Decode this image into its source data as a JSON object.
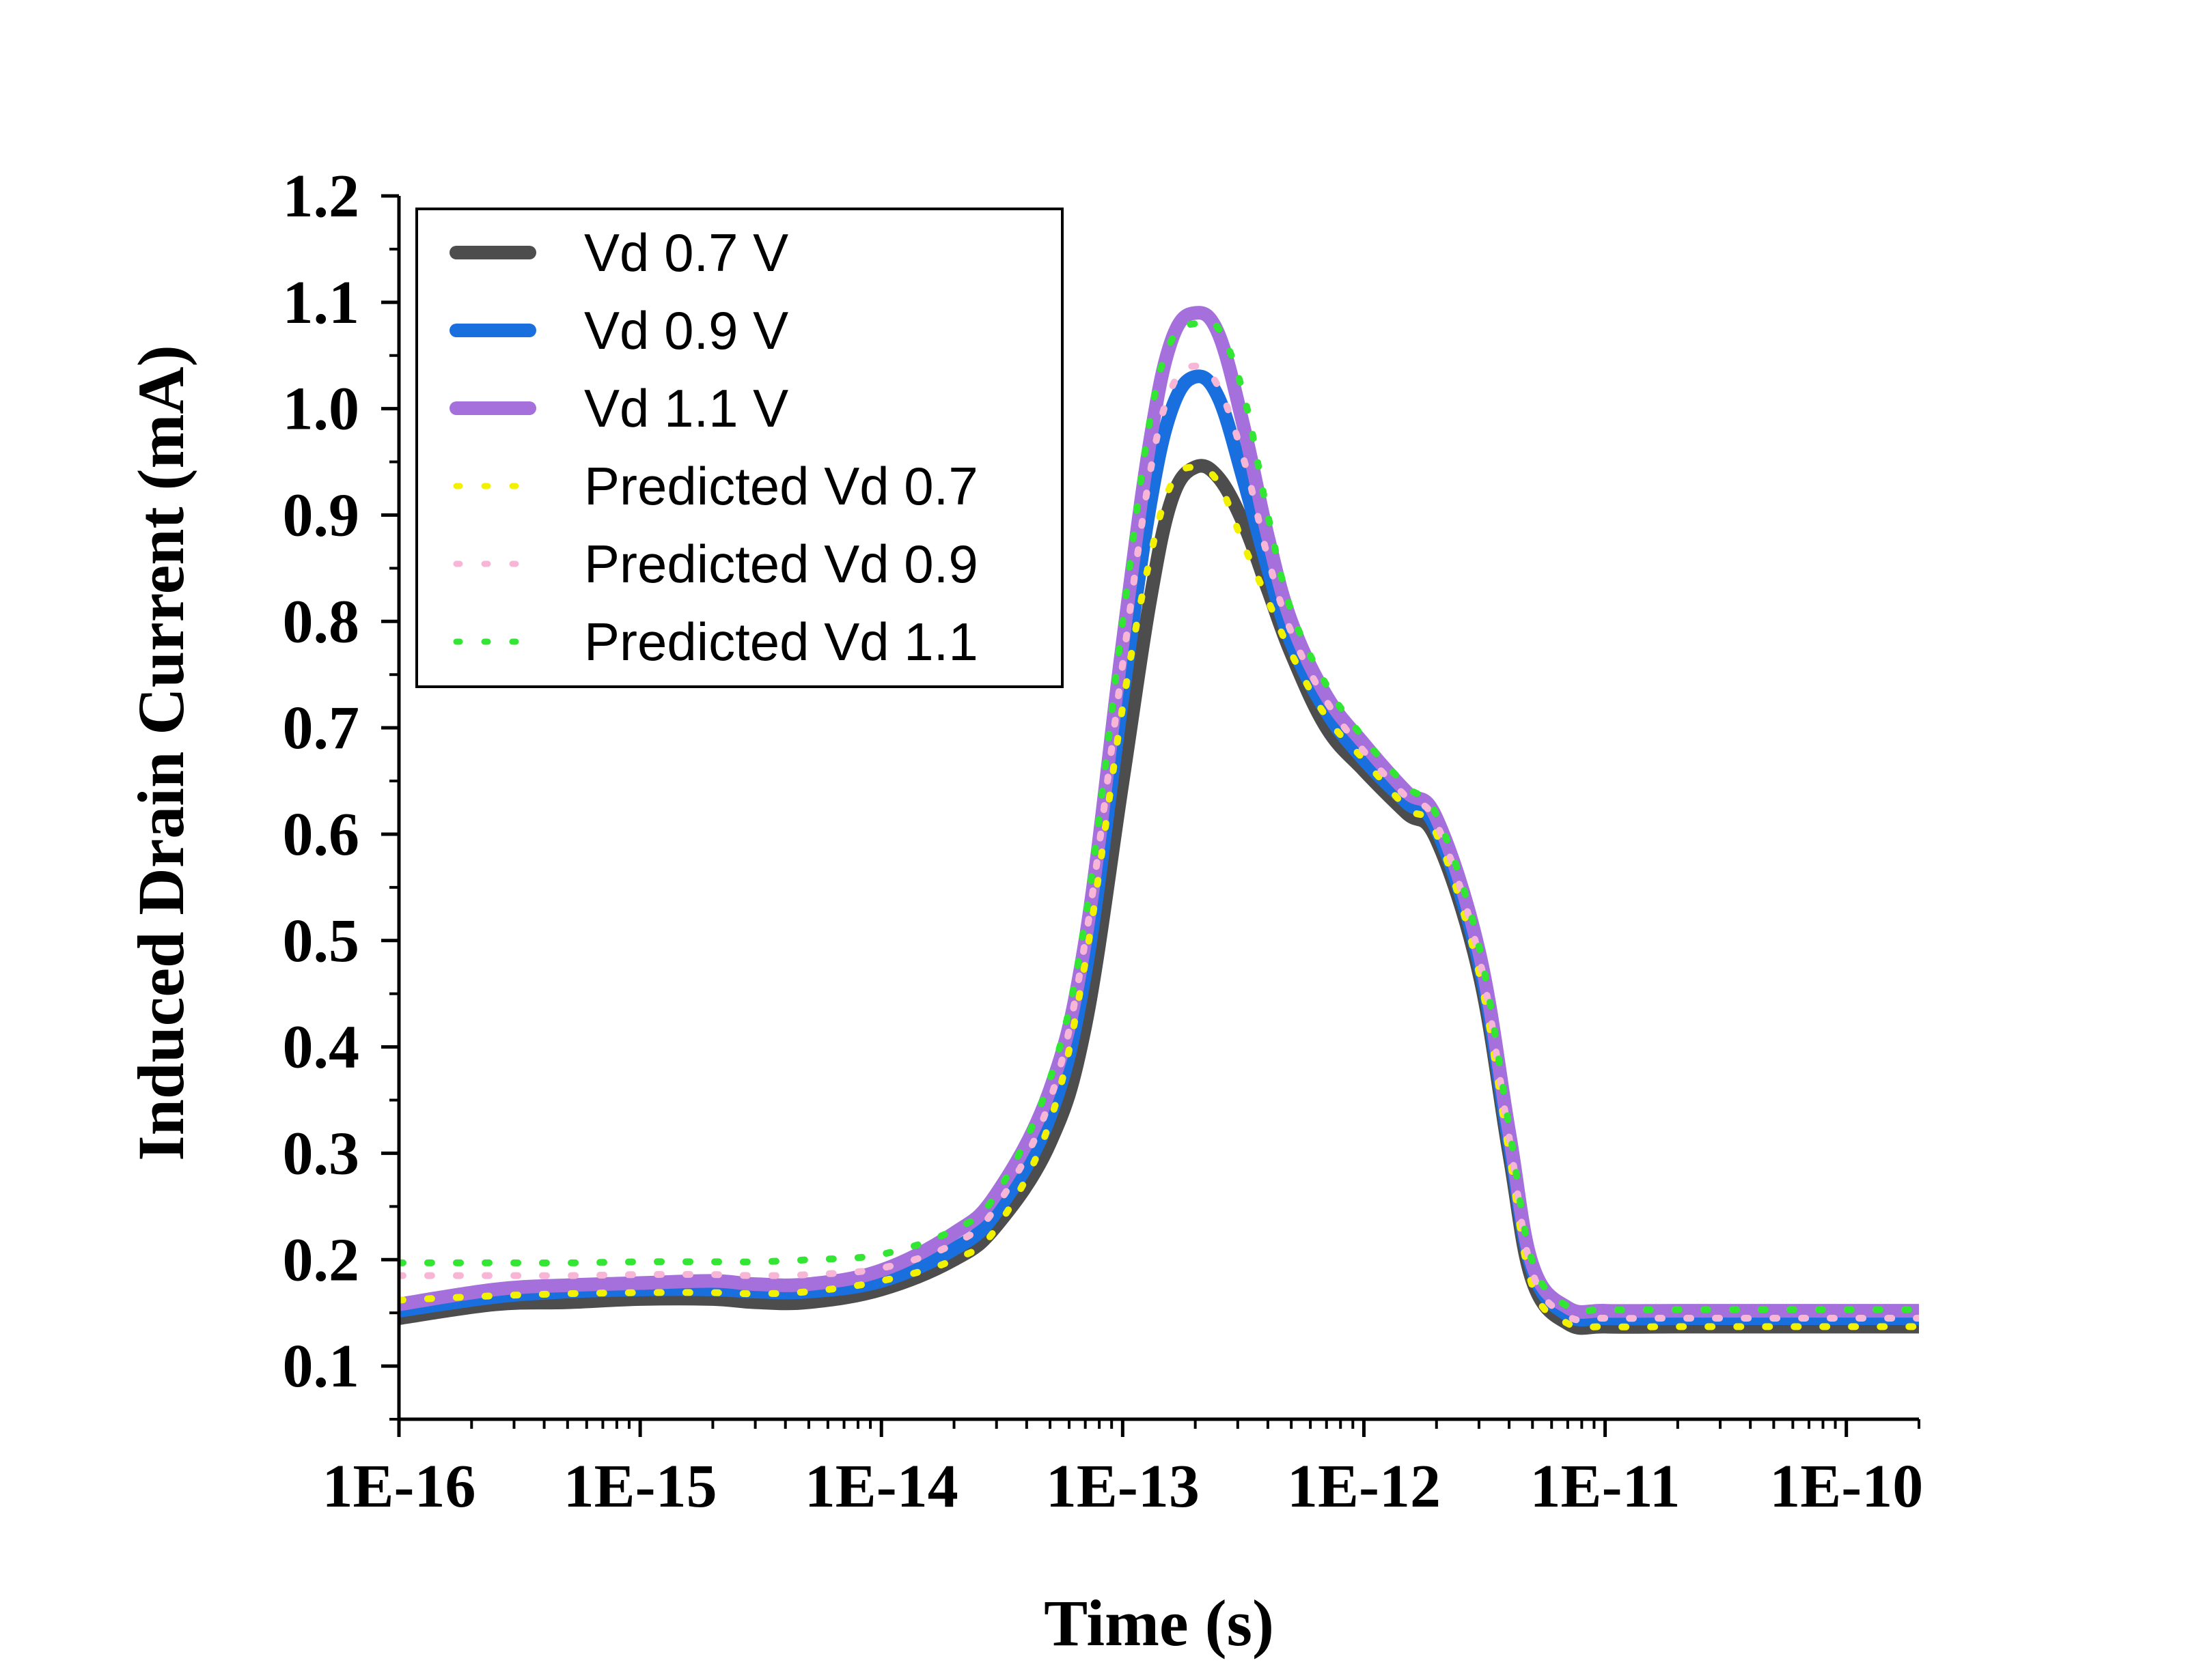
{
  "chart_data": {
    "type": "line",
    "xlabel": "Time (s)",
    "ylabel": "Induced Drain Current (mA)",
    "x_scale": "log",
    "xlim": [
      1e-16,
      2e-10
    ],
    "ylim": [
      0.05,
      1.2
    ],
    "x_ticks": [
      1e-16,
      1e-15,
      1e-14,
      1e-13,
      1e-12,
      1e-11,
      1e-10
    ],
    "x_tick_labels": [
      "1E-16",
      "1E-15",
      "1E-14",
      "1E-13",
      "1E-12",
      "1E-11",
      "1E-10"
    ],
    "y_ticks": [
      0.1,
      0.2,
      0.3,
      0.4,
      0.5,
      0.6,
      0.7,
      0.8,
      0.9,
      1.0,
      1.1,
      1.2
    ],
    "y_tick_labels": [
      "0.1",
      "0.2",
      "0.3",
      "0.4",
      "0.5",
      "0.6",
      "0.7",
      "0.8",
      "0.9",
      "1.0",
      "1.1",
      "1.2"
    ],
    "grid": false,
    "legend_position": "top-left",
    "x": [
      1e-16,
      2.5e-16,
      5e-16,
      1e-15,
      2e-15,
      3e-15,
      5e-15,
      1e-14,
      2e-14,
      3e-14,
      5e-14,
      7e-14,
      1e-13,
      1.3e-13,
      1.6e-13,
      2e-13,
      2.5e-13,
      3.2e-13,
      4e-13,
      5e-13,
      7e-13,
      1e-12,
      1.5e-12,
      2e-12,
      3e-12,
      4e-12,
      5e-12,
      7e-12,
      1e-11,
      2e-11,
      5e-11,
      1e-10,
      2e-10
    ],
    "series": [
      {
        "name": "Vd 0.7 V",
        "style": "solid",
        "color": "#4d4d4d",
        "values": [
          0.145,
          0.158,
          0.16,
          0.163,
          0.163,
          0.16,
          0.16,
          0.172,
          0.2,
          0.232,
          0.31,
          0.42,
          0.65,
          0.82,
          0.915,
          0.945,
          0.935,
          0.89,
          0.83,
          0.77,
          0.7,
          0.66,
          0.62,
          0.595,
          0.47,
          0.3,
          0.18,
          0.14,
          0.137,
          0.137,
          0.137,
          0.137,
          0.137
        ]
      },
      {
        "name": "Vd 0.9 V",
        "style": "solid",
        "color": "#1a6fdf",
        "values": [
          0.152,
          0.165,
          0.17,
          0.172,
          0.172,
          0.17,
          0.17,
          0.18,
          0.21,
          0.245,
          0.335,
          0.47,
          0.73,
          0.91,
          1.0,
          1.03,
          1.01,
          0.93,
          0.85,
          0.78,
          0.715,
          0.67,
          0.63,
          0.605,
          0.48,
          0.31,
          0.19,
          0.148,
          0.145,
          0.145,
          0.145,
          0.145,
          0.145
        ]
      },
      {
        "name": "Vd 1.1 V",
        "style": "solid",
        "color": "#a56fdc",
        "values": [
          0.158,
          0.172,
          0.176,
          0.178,
          0.18,
          0.177,
          0.177,
          0.19,
          0.225,
          0.262,
          0.36,
          0.5,
          0.78,
          0.97,
          1.065,
          1.09,
          1.07,
          0.98,
          0.88,
          0.8,
          0.73,
          0.685,
          0.64,
          0.615,
          0.49,
          0.32,
          0.195,
          0.155,
          0.152,
          0.152,
          0.152,
          0.152,
          0.152
        ]
      },
      {
        "name": "Predicted Vd 0.7",
        "style": "dotted",
        "color": "#f2f200",
        "values": [
          0.162,
          0.166,
          0.168,
          0.169,
          0.169,
          0.168,
          0.17,
          0.18,
          0.2,
          0.23,
          0.33,
          0.48,
          0.72,
          0.86,
          0.93,
          0.945,
          0.93,
          0.87,
          0.82,
          0.77,
          0.71,
          0.67,
          0.625,
          0.6,
          0.47,
          0.3,
          0.175,
          0.14,
          0.137,
          0.137,
          0.137,
          0.137,
          0.137
        ]
      },
      {
        "name": "Predicted Vd 0.9",
        "style": "dotted",
        "color": "#f7b6d6",
        "values": [
          0.185,
          0.185,
          0.185,
          0.186,
          0.186,
          0.185,
          0.186,
          0.192,
          0.215,
          0.25,
          0.35,
          0.5,
          0.76,
          0.94,
          1.02,
          1.04,
          1.02,
          0.95,
          0.86,
          0.79,
          0.725,
          0.678,
          0.635,
          0.61,
          0.485,
          0.315,
          0.188,
          0.147,
          0.145,
          0.145,
          0.145,
          0.145,
          0.145
        ]
      },
      {
        "name": "Predicted Vd 1.1",
        "style": "dotted",
        "color": "#33e633",
        "values": [
          0.197,
          0.197,
          0.197,
          0.198,
          0.198,
          0.198,
          0.2,
          0.205,
          0.228,
          0.262,
          0.37,
          0.52,
          0.8,
          0.99,
          1.065,
          1.08,
          1.075,
          1.01,
          0.9,
          0.81,
          0.74,
          0.69,
          0.645,
          0.618,
          0.495,
          0.325,
          0.198,
          0.156,
          0.153,
          0.153,
          0.153,
          0.153,
          0.153
        ]
      }
    ]
  }
}
